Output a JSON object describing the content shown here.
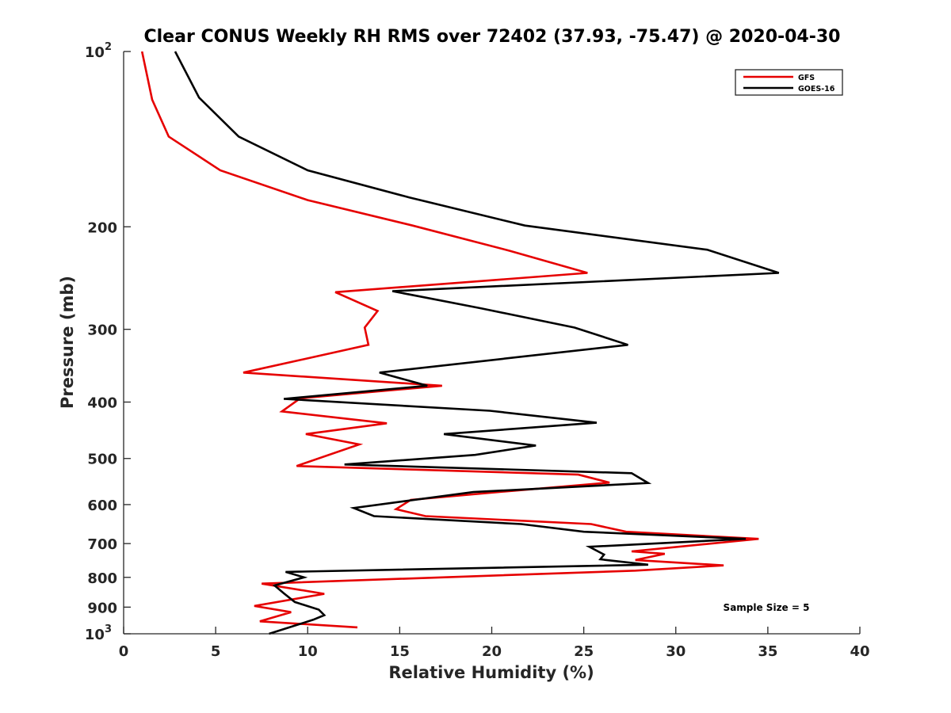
{
  "chart_data": {
    "type": "line",
    "title": "Clear CONUS Weekly RH RMS over 72402 (37.93, -75.47) @ 2020-04-30",
    "xlabel": "Relative Humidity (%)",
    "ylabel": "Pressure (mb)",
    "xlim": [
      0,
      40
    ],
    "ylim": [
      100,
      1000
    ],
    "yscale": "log",
    "y_reversed": true,
    "grid": false,
    "xticks": [
      0,
      5,
      10,
      15,
      20,
      25,
      30,
      35,
      40
    ],
    "xtick_labels": [
      "0",
      "5",
      "10",
      "15",
      "20",
      "25",
      "30",
      "35",
      "40"
    ],
    "yticks": [
      100,
      200,
      300,
      400,
      500,
      600,
      700,
      800,
      900,
      1000
    ],
    "ytick_labels": [
      "10^2",
      "200",
      "300",
      "400",
      "500",
      "600",
      "700",
      "800",
      "900",
      "10^3"
    ],
    "legend": {
      "placement": "top-right",
      "entries": [
        "GFS",
        "GOES-16"
      ]
    },
    "annotations": [
      {
        "text": "Sample Size = 5",
        "x": 37.0,
        "y": 900
      }
    ],
    "series": [
      {
        "name": "GFS",
        "color": "#e60000",
        "points": [
          [
            1.0,
            100
          ],
          [
            1.55,
            121
          ],
          [
            2.45,
            140
          ],
          [
            5.25,
            160
          ],
          [
            10.0,
            180
          ],
          [
            15.7,
            199
          ],
          [
            21.0,
            220
          ],
          [
            25.2,
            240
          ],
          [
            11.5,
            259
          ],
          [
            13.8,
            279
          ],
          [
            13.1,
            298
          ],
          [
            13.3,
            319
          ],
          [
            6.5,
            356
          ],
          [
            17.3,
            375
          ],
          [
            9.6,
            394
          ],
          [
            8.6,
            415
          ],
          [
            14.3,
            435
          ],
          [
            9.9,
            454
          ],
          [
            12.8,
            473
          ],
          [
            9.4,
            515
          ],
          [
            24.7,
            533
          ],
          [
            26.4,
            550
          ],
          [
            21.2,
            568
          ],
          [
            15.6,
            589
          ],
          [
            14.8,
            611
          ],
          [
            16.4,
            628
          ],
          [
            25.4,
            648
          ],
          [
            27.3,
            668
          ],
          [
            34.5,
            687
          ],
          [
            27.6,
            722
          ],
          [
            29.4,
            729
          ],
          [
            27.8,
            747
          ],
          [
            32.6,
            763
          ],
          [
            27.8,
            779
          ],
          [
            7.5,
            820
          ],
          [
            10.9,
            854
          ],
          [
            7.1,
            896
          ],
          [
            9.1,
            918
          ],
          [
            7.4,
            952
          ],
          [
            12.7,
            975
          ]
        ]
      },
      {
        "name": "GOES-16",
        "color": "#000000",
        "points": [
          [
            2.8,
            100
          ],
          [
            4.1,
            120
          ],
          [
            6.25,
            140
          ],
          [
            10.0,
            160
          ],
          [
            15.5,
            178
          ],
          [
            21.8,
            199
          ],
          [
            31.7,
            219
          ],
          [
            35.6,
            240
          ],
          [
            14.6,
            258
          ],
          [
            19.4,
            276
          ],
          [
            24.5,
            298
          ],
          [
            27.4,
            319
          ],
          [
            13.9,
            356
          ],
          [
            16.5,
            375
          ],
          [
            8.7,
            395
          ],
          [
            19.9,
            414
          ],
          [
            25.7,
            434
          ],
          [
            17.4,
            454
          ],
          [
            22.4,
            475
          ],
          [
            19.1,
            493
          ],
          [
            12.0,
            512
          ],
          [
            27.6,
            530
          ],
          [
            28.5,
            551
          ],
          [
            19.0,
            571
          ],
          [
            12.5,
            608
          ],
          [
            13.6,
            628
          ],
          [
            21.6,
            648
          ],
          [
            25.0,
            668
          ],
          [
            33.8,
            687
          ],
          [
            25.3,
            709
          ],
          [
            26.1,
            731
          ],
          [
            25.9,
            745
          ],
          [
            28.5,
            761
          ],
          [
            8.8,
            783
          ],
          [
            9.8,
            800
          ],
          [
            8.2,
            826
          ],
          [
            8.7,
            852
          ],
          [
            9.3,
            882
          ],
          [
            10.6,
            909
          ],
          [
            10.9,
            929
          ],
          [
            10.3,
            946
          ],
          [
            7.9,
            1000
          ]
        ]
      }
    ]
  }
}
